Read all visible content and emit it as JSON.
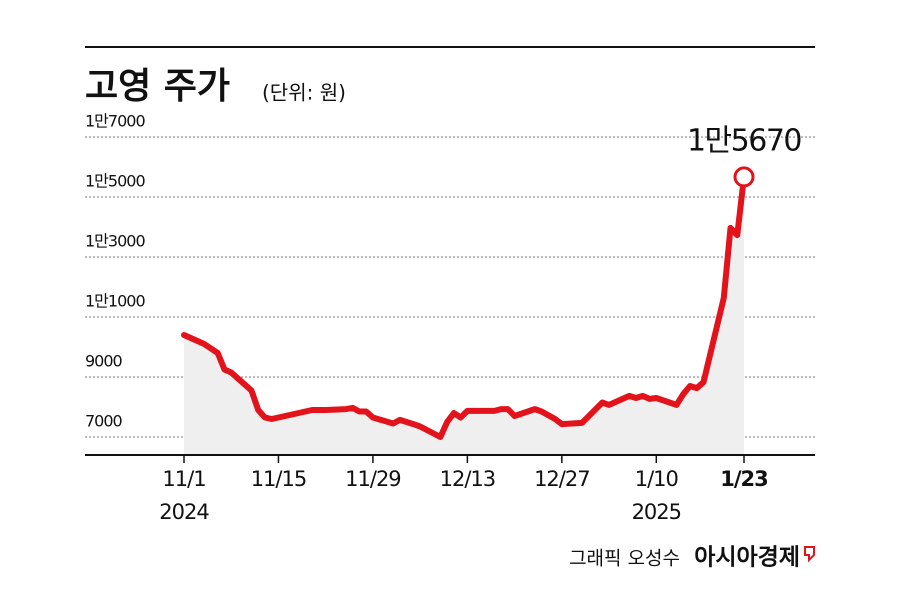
{
  "chart_data": {
    "type": "line",
    "title": "고영 주가",
    "subtitle": "(단위: 원)",
    "x": [
      "2024-11-01",
      "2024-11-04",
      "2024-11-05",
      "2024-11-06",
      "2024-11-07",
      "2024-11-08",
      "2024-11-11",
      "2024-11-12",
      "2024-11-13",
      "2024-11-14",
      "2024-11-15",
      "2024-11-18",
      "2024-11-19",
      "2024-11-20",
      "2024-11-21",
      "2024-11-22",
      "2024-11-25",
      "2024-11-26",
      "2024-11-27",
      "2024-11-28",
      "2024-11-29",
      "2024-12-02",
      "2024-12-03",
      "2024-12-04",
      "2024-12-05",
      "2024-12-06",
      "2024-12-09",
      "2024-12-10",
      "2024-12-11",
      "2024-12-12",
      "2024-12-13",
      "2024-12-16",
      "2024-12-17",
      "2024-12-18",
      "2024-12-19",
      "2024-12-20",
      "2024-12-23",
      "2024-12-24",
      "2024-12-26",
      "2024-12-27",
      "2024-12-30",
      "2025-01-02",
      "2025-01-03",
      "2025-01-06",
      "2025-01-07",
      "2025-01-08",
      "2025-01-09",
      "2025-01-10",
      "2025-01-13",
      "2025-01-14",
      "2025-01-15",
      "2025-01-16",
      "2025-01-17",
      "2025-01-20",
      "2025-01-21",
      "2025-01-22",
      "2025-01-23"
    ],
    "series": [
      {
        "name": "고영",
        "color": "#e3131b",
        "values": [
          10400,
          10100,
          9950,
          9800,
          9250,
          9150,
          8550,
          7900,
          7650,
          7600,
          7650,
          7800,
          7850,
          7900,
          7900,
          7900,
          7930,
          7970,
          7850,
          7850,
          7650,
          7450,
          7570,
          7500,
          7430,
          7350,
          7000,
          7500,
          7800,
          7650,
          7870,
          7870,
          7870,
          7930,
          7930,
          7700,
          7930,
          7850,
          7600,
          7430,
          7470,
          8150,
          8070,
          8370,
          8300,
          8370,
          8270,
          8300,
          8070,
          8430,
          8700,
          8630,
          8830,
          11630,
          13970,
          13730,
          15670
        ]
      }
    ],
    "ylim": [
      6400,
      17600
    ],
    "yticks": [
      7000,
      9000,
      {
        "value": 11000,
        "label": "1만1000"
      },
      {
        "value": 13000,
        "label": "1만3000"
      },
      {
        "value": 15000,
        "label": "1만5000"
      },
      {
        "value": 17000,
        "label": "1만7000"
      }
    ],
    "xticks": [
      {
        "value": "2024-11-01",
        "label": "11/1"
      },
      {
        "value": "2024-11-15",
        "label": "11/15"
      },
      {
        "value": "2024-11-29",
        "label": "11/29"
      },
      {
        "value": "2024-12-13",
        "label": "12/13"
      },
      {
        "value": "2024-12-27",
        "label": "12/27"
      },
      {
        "value": "2025-01-10",
        "label": "1/10"
      },
      {
        "value": "2025-01-23",
        "label": "1/23"
      }
    ],
    "x_year_labels": [
      {
        "value": "2024-11-01",
        "label": "2024"
      },
      {
        "value": "2025-01-10",
        "label": "2025"
      }
    ],
    "last_value_label": "1만5670",
    "grid": true,
    "credit": "그래픽 오성수",
    "source": "아시아경제"
  }
}
